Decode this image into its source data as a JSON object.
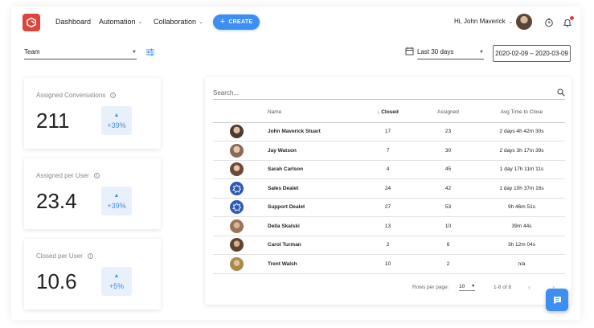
{
  "header": {
    "nav": [
      {
        "label": "Dashboard"
      },
      {
        "label": "Automation"
      },
      {
        "label": "Collaboration"
      }
    ],
    "create_label": "CREATE",
    "greeting": "Hi, John Maverick",
    "notification_color": "#e0433c"
  },
  "filters": {
    "team_label": "Team",
    "range_label": "Last 30 days",
    "date_range": "2020-02-09 – 2020-03-09"
  },
  "stats": [
    {
      "title": "Assigned Conversations",
      "value": "211",
      "change": "+39%"
    },
    {
      "title": "Assigned per User",
      "value": "23.4",
      "change": "+39%"
    },
    {
      "title": "Closed per User",
      "value": "10.6",
      "change": "+5%"
    }
  ],
  "table": {
    "search_placeholder": "Search...",
    "columns": {
      "name": "Name",
      "closed": "Closed",
      "assigned": "Assigned",
      "avg": "Avg Time to Close"
    },
    "rows": [
      {
        "avatar": "photo",
        "name": "John Maverick Stuart",
        "closed": "17",
        "assigned": "23",
        "avg": "2 days 4h 42m 30s"
      },
      {
        "avatar": "photo",
        "name": "Jay Watson",
        "closed": "7",
        "assigned": "30",
        "avg": "2 days 3h 17m 39s"
      },
      {
        "avatar": "photo",
        "name": "Sarah Carlson",
        "closed": "4",
        "assigned": "45",
        "avg": "1 day 17h 11m 11s"
      },
      {
        "avatar": "team-icon",
        "name": "Sales Dealet",
        "closed": "24",
        "assigned": "42",
        "avg": "1 day 10h 37m 16s"
      },
      {
        "avatar": "team-icon",
        "name": "Support Dealet",
        "closed": "27",
        "assigned": "53",
        "avg": "9h 46m 51s"
      },
      {
        "avatar": "photo",
        "name": "Della Skalski",
        "closed": "13",
        "assigned": "10",
        "avg": "39m 44s"
      },
      {
        "avatar": "photo",
        "name": "Carol Turman",
        "closed": "2",
        "assigned": "6",
        "avg": "3h 12m 04s"
      },
      {
        "avatar": "photo",
        "name": "Trent Walsh",
        "closed": "10",
        "assigned": "2",
        "avg": "n/a"
      }
    ],
    "pagination": {
      "rows_per_page_label": "Rows per page:",
      "rows_per_page": "10",
      "range": "1-8 of 8"
    }
  },
  "colors": {
    "accent": "#3d8ef0",
    "brand": "#e0433c",
    "change_bg": "#e8f0fb"
  }
}
